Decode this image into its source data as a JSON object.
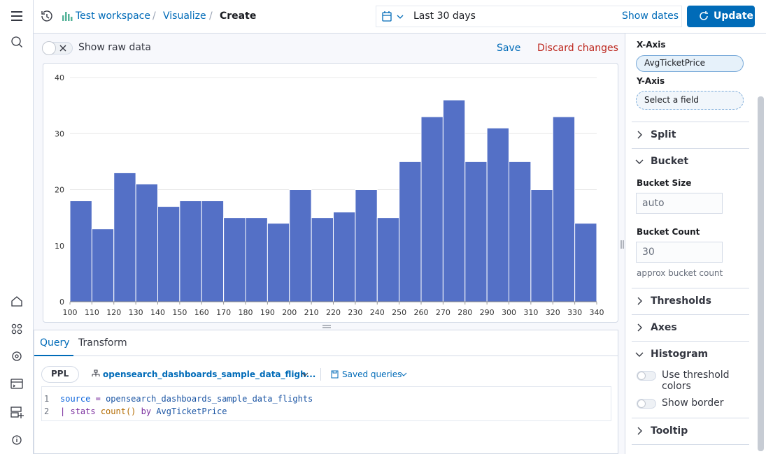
{
  "header": {
    "breadcrumbs": [
      "Test workspace",
      "Visualize",
      "Create"
    ],
    "date_range": "Last 30 days",
    "show_dates": "Show dates",
    "update": "Update"
  },
  "toolbar": {
    "show_raw_data": "Show raw data",
    "save": "Save",
    "discard": "Discard changes"
  },
  "chart_data": {
    "type": "histogram",
    "bins": [
      100,
      110,
      120,
      130,
      140,
      150,
      160,
      170,
      180,
      190,
      200,
      210,
      220,
      230,
      240,
      250,
      260,
      270,
      280,
      290,
      300,
      310,
      320,
      330,
      340
    ],
    "values": [
      18,
      13,
      23,
      21,
      17,
      18,
      18,
      15,
      15,
      14,
      20,
      15,
      16,
      20,
      15,
      25,
      33,
      36,
      25,
      31,
      25,
      20,
      33,
      14
    ],
    "color": "#5470c6",
    "xlim": [
      100,
      340
    ],
    "xticks": [
      100,
      110,
      120,
      130,
      140,
      150,
      160,
      170,
      180,
      190,
      200,
      210,
      220,
      230,
      240,
      250,
      260,
      270,
      280,
      290,
      300,
      310,
      320,
      330,
      340
    ],
    "ylim": [
      0,
      40
    ],
    "yticks": [
      0,
      10,
      20,
      30,
      40
    ],
    "grid": true
  },
  "query": {
    "tabs": [
      "Query",
      "Transform"
    ],
    "language": "PPL",
    "dataset": "opensearch_dashboards_sample_data_fligh...",
    "saved_queries": "Saved queries",
    "line_numbers": [
      "1",
      "2"
    ],
    "code": [
      [
        "source",
        "=",
        "opensearch_dashboards_sample_data_flights"
      ],
      [
        "|",
        "stats",
        "count()",
        "by",
        "AvgTicketPrice"
      ]
    ]
  },
  "panel": {
    "x_axis_label": "X-Axis",
    "x_axis_field": "AvgTicketPrice",
    "y_axis_label": "Y-Axis",
    "y_axis_placeholder": "Select a field",
    "split": "Split",
    "bucket": "Bucket",
    "bucket_size_label": "Bucket Size",
    "bucket_size_value": "auto",
    "bucket_count_label": "Bucket Count",
    "bucket_count_value": "30",
    "bucket_count_help": "approx bucket count",
    "thresholds": "Thresholds",
    "axes": "Axes",
    "histogram": "Histogram",
    "use_threshold_colors": "Use threshold colors",
    "show_border": "Show border",
    "tooltip": "Tooltip"
  }
}
